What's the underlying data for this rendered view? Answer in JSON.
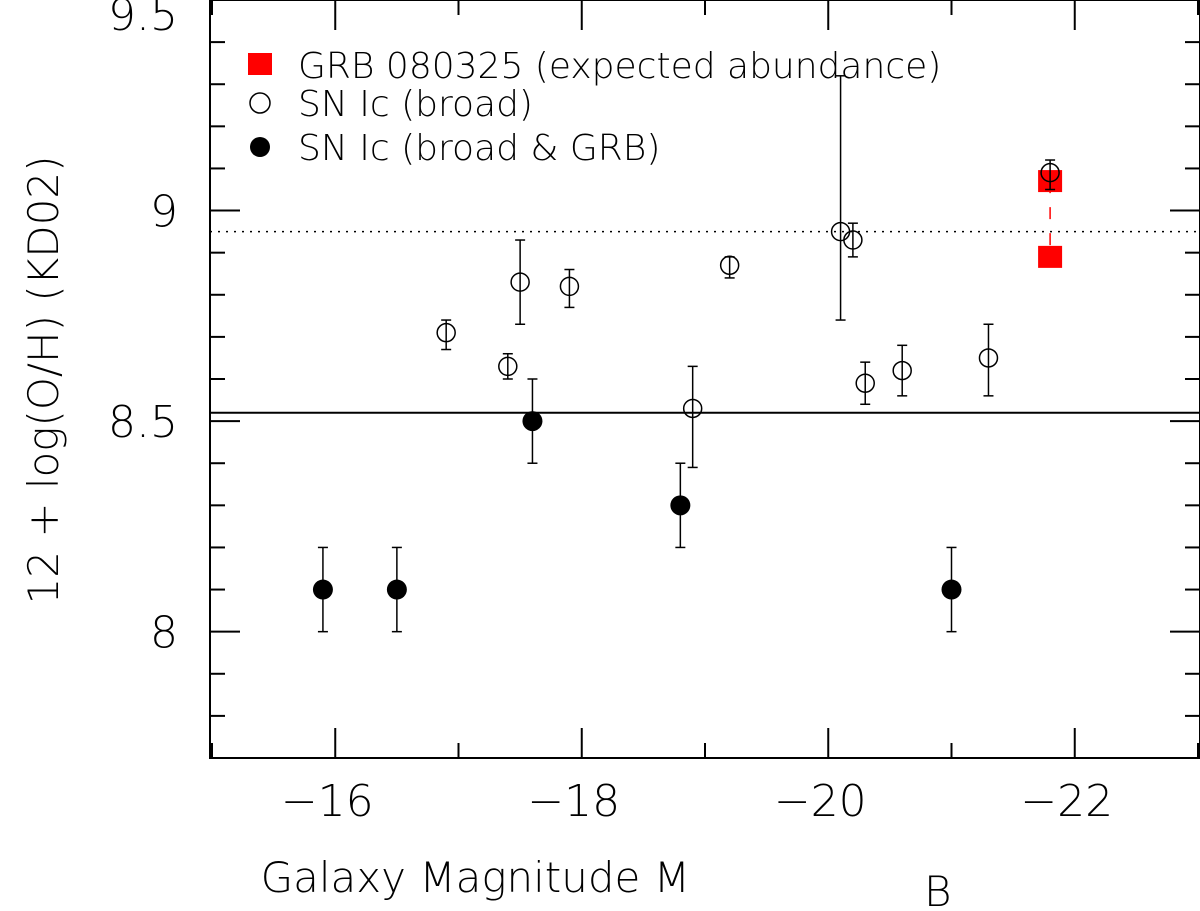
{
  "chart_data": {
    "type": "scatter",
    "xlabel": "Galaxy Magnitude M",
    "xlabel_subscript": "B",
    "ylabel": "12 + log(O/H) (KD02)",
    "xlim": [
      -15,
      -23
    ],
    "ylim": [
      7.7,
      9.5
    ],
    "x_ticks": [
      -16,
      -18,
      -20,
      -22
    ],
    "x_tick_labels": [
      "−16",
      "−18",
      "−20",
      "−22"
    ],
    "y_ticks": [
      8,
      8.5,
      9,
      9.5
    ],
    "y_tick_labels": [
      "8",
      "8.5",
      "9",
      "9.5"
    ],
    "reference_lines": [
      {
        "y": 8.52,
        "style": "solid"
      },
      {
        "y": 8.95,
        "style": "dotted"
      }
    ],
    "legend_position": "top-left",
    "series": [
      {
        "name": "GRB 080325 (expected abundance)",
        "marker": "filled-square",
        "color": "#ff0000",
        "connector": "dashed",
        "points": [
          {
            "x": -21.8,
            "y": 9.07
          },
          {
            "x": -21.8,
            "y": 8.89
          }
        ]
      },
      {
        "name": "SN Ic (broad)",
        "marker": "open-circle",
        "color": "#000000",
        "points": [
          {
            "x": -16.9,
            "y": 8.71,
            "ylo": 8.67,
            "yhi": 8.74
          },
          {
            "x": -17.4,
            "y": 8.63,
            "ylo": 8.6,
            "yhi": 8.66
          },
          {
            "x": -17.5,
            "y": 8.83,
            "ylo": 8.73,
            "yhi": 8.93
          },
          {
            "x": -17.9,
            "y": 8.82,
            "ylo": 8.77,
            "yhi": 8.86
          },
          {
            "x": -18.9,
            "y": 8.53,
            "ylo": 8.39,
            "yhi": 8.63
          },
          {
            "x": -19.2,
            "y": 8.87,
            "ylo": 8.84,
            "yhi": 8.89
          },
          {
            "x": -20.1,
            "y": 8.95,
            "ylo": 8.74,
            "yhi": 9.32
          },
          {
            "x": -20.2,
            "y": 8.93,
            "ylo": 8.89,
            "yhi": 8.97
          },
          {
            "x": -20.3,
            "y": 8.59,
            "ylo": 8.54,
            "yhi": 8.64
          },
          {
            "x": -20.6,
            "y": 8.62,
            "ylo": 8.56,
            "yhi": 8.68
          },
          {
            "x": -21.3,
            "y": 8.65,
            "ylo": 8.56,
            "yhi": 8.73
          },
          {
            "x": -21.8,
            "y": 9.09,
            "ylo": 9.05,
            "yhi": 9.12
          }
        ]
      },
      {
        "name": "SN Ic (broad & GRB)",
        "marker": "filled-circle",
        "color": "#000000",
        "points": [
          {
            "x": -15.9,
            "y": 8.1,
            "ylo": 8.0,
            "yhi": 8.2
          },
          {
            "x": -16.5,
            "y": 8.1,
            "ylo": 8.0,
            "yhi": 8.2
          },
          {
            "x": -17.6,
            "y": 8.5,
            "ylo": 8.4,
            "yhi": 8.6
          },
          {
            "x": -18.8,
            "y": 8.3,
            "ylo": 8.2,
            "yhi": 8.4
          },
          {
            "x": -21.0,
            "y": 8.1,
            "ylo": 8.0,
            "yhi": 8.2
          }
        ]
      }
    ]
  }
}
